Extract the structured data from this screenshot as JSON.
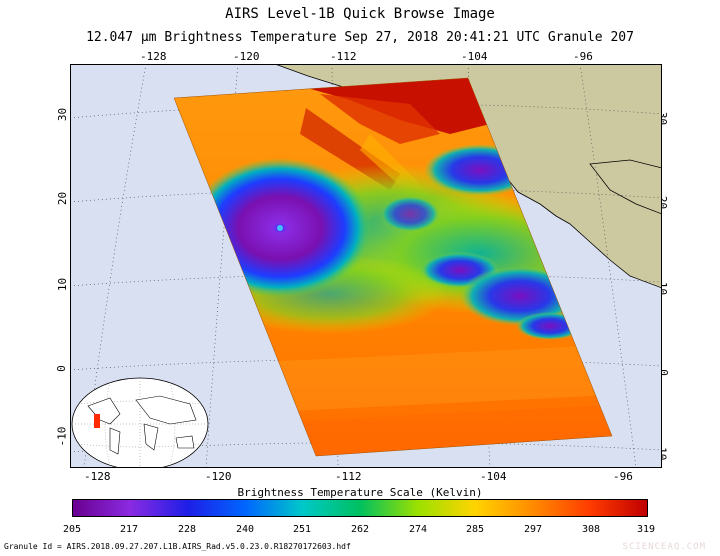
{
  "header": {
    "title": "AIRS Level-1B Quick Browse Image",
    "subtitle": "12.047 μm Brightness Temperature   Sep 27, 2018 20:41:21 UTC  Granule 207"
  },
  "map": {
    "top_lon_labels": [
      "-128",
      "-120",
      "-112",
      "-104",
      "-96"
    ],
    "bottom_lon_labels": [
      "-128",
      "-120",
      "-112",
      "-104",
      "-96"
    ],
    "left_lat_labels": [
      "30",
      "20",
      "10",
      "0",
      "-10"
    ],
    "right_lat_labels": [
      "30",
      "20",
      "10",
      "0",
      "-10"
    ],
    "ocean_color": "#d8e0f2",
    "land_color": "#ccc8a0",
    "grid": "dotted"
  },
  "colorbar": {
    "title": "Brightness Temperature Scale (Kelvin)",
    "ticks": [
      "205",
      "217",
      "228",
      "240",
      "251",
      "262",
      "274",
      "285",
      "297",
      "308",
      "319"
    ],
    "colors": [
      "#6a0090",
      "#8a2be2",
      "#1e1ee6",
      "#0066ff",
      "#00c8c8",
      "#00c060",
      "#9ae000",
      "#ffd400",
      "#ff8c00",
      "#ff3c00",
      "#c00000"
    ]
  },
  "footer": {
    "granule_id": "Granule Id = AIRS.2018.09.27.207.L1B.AIRS_Rad.v5.0.23.0.R18270172603.hdf",
    "credit": "SCIENCEAQ.COM"
  }
}
